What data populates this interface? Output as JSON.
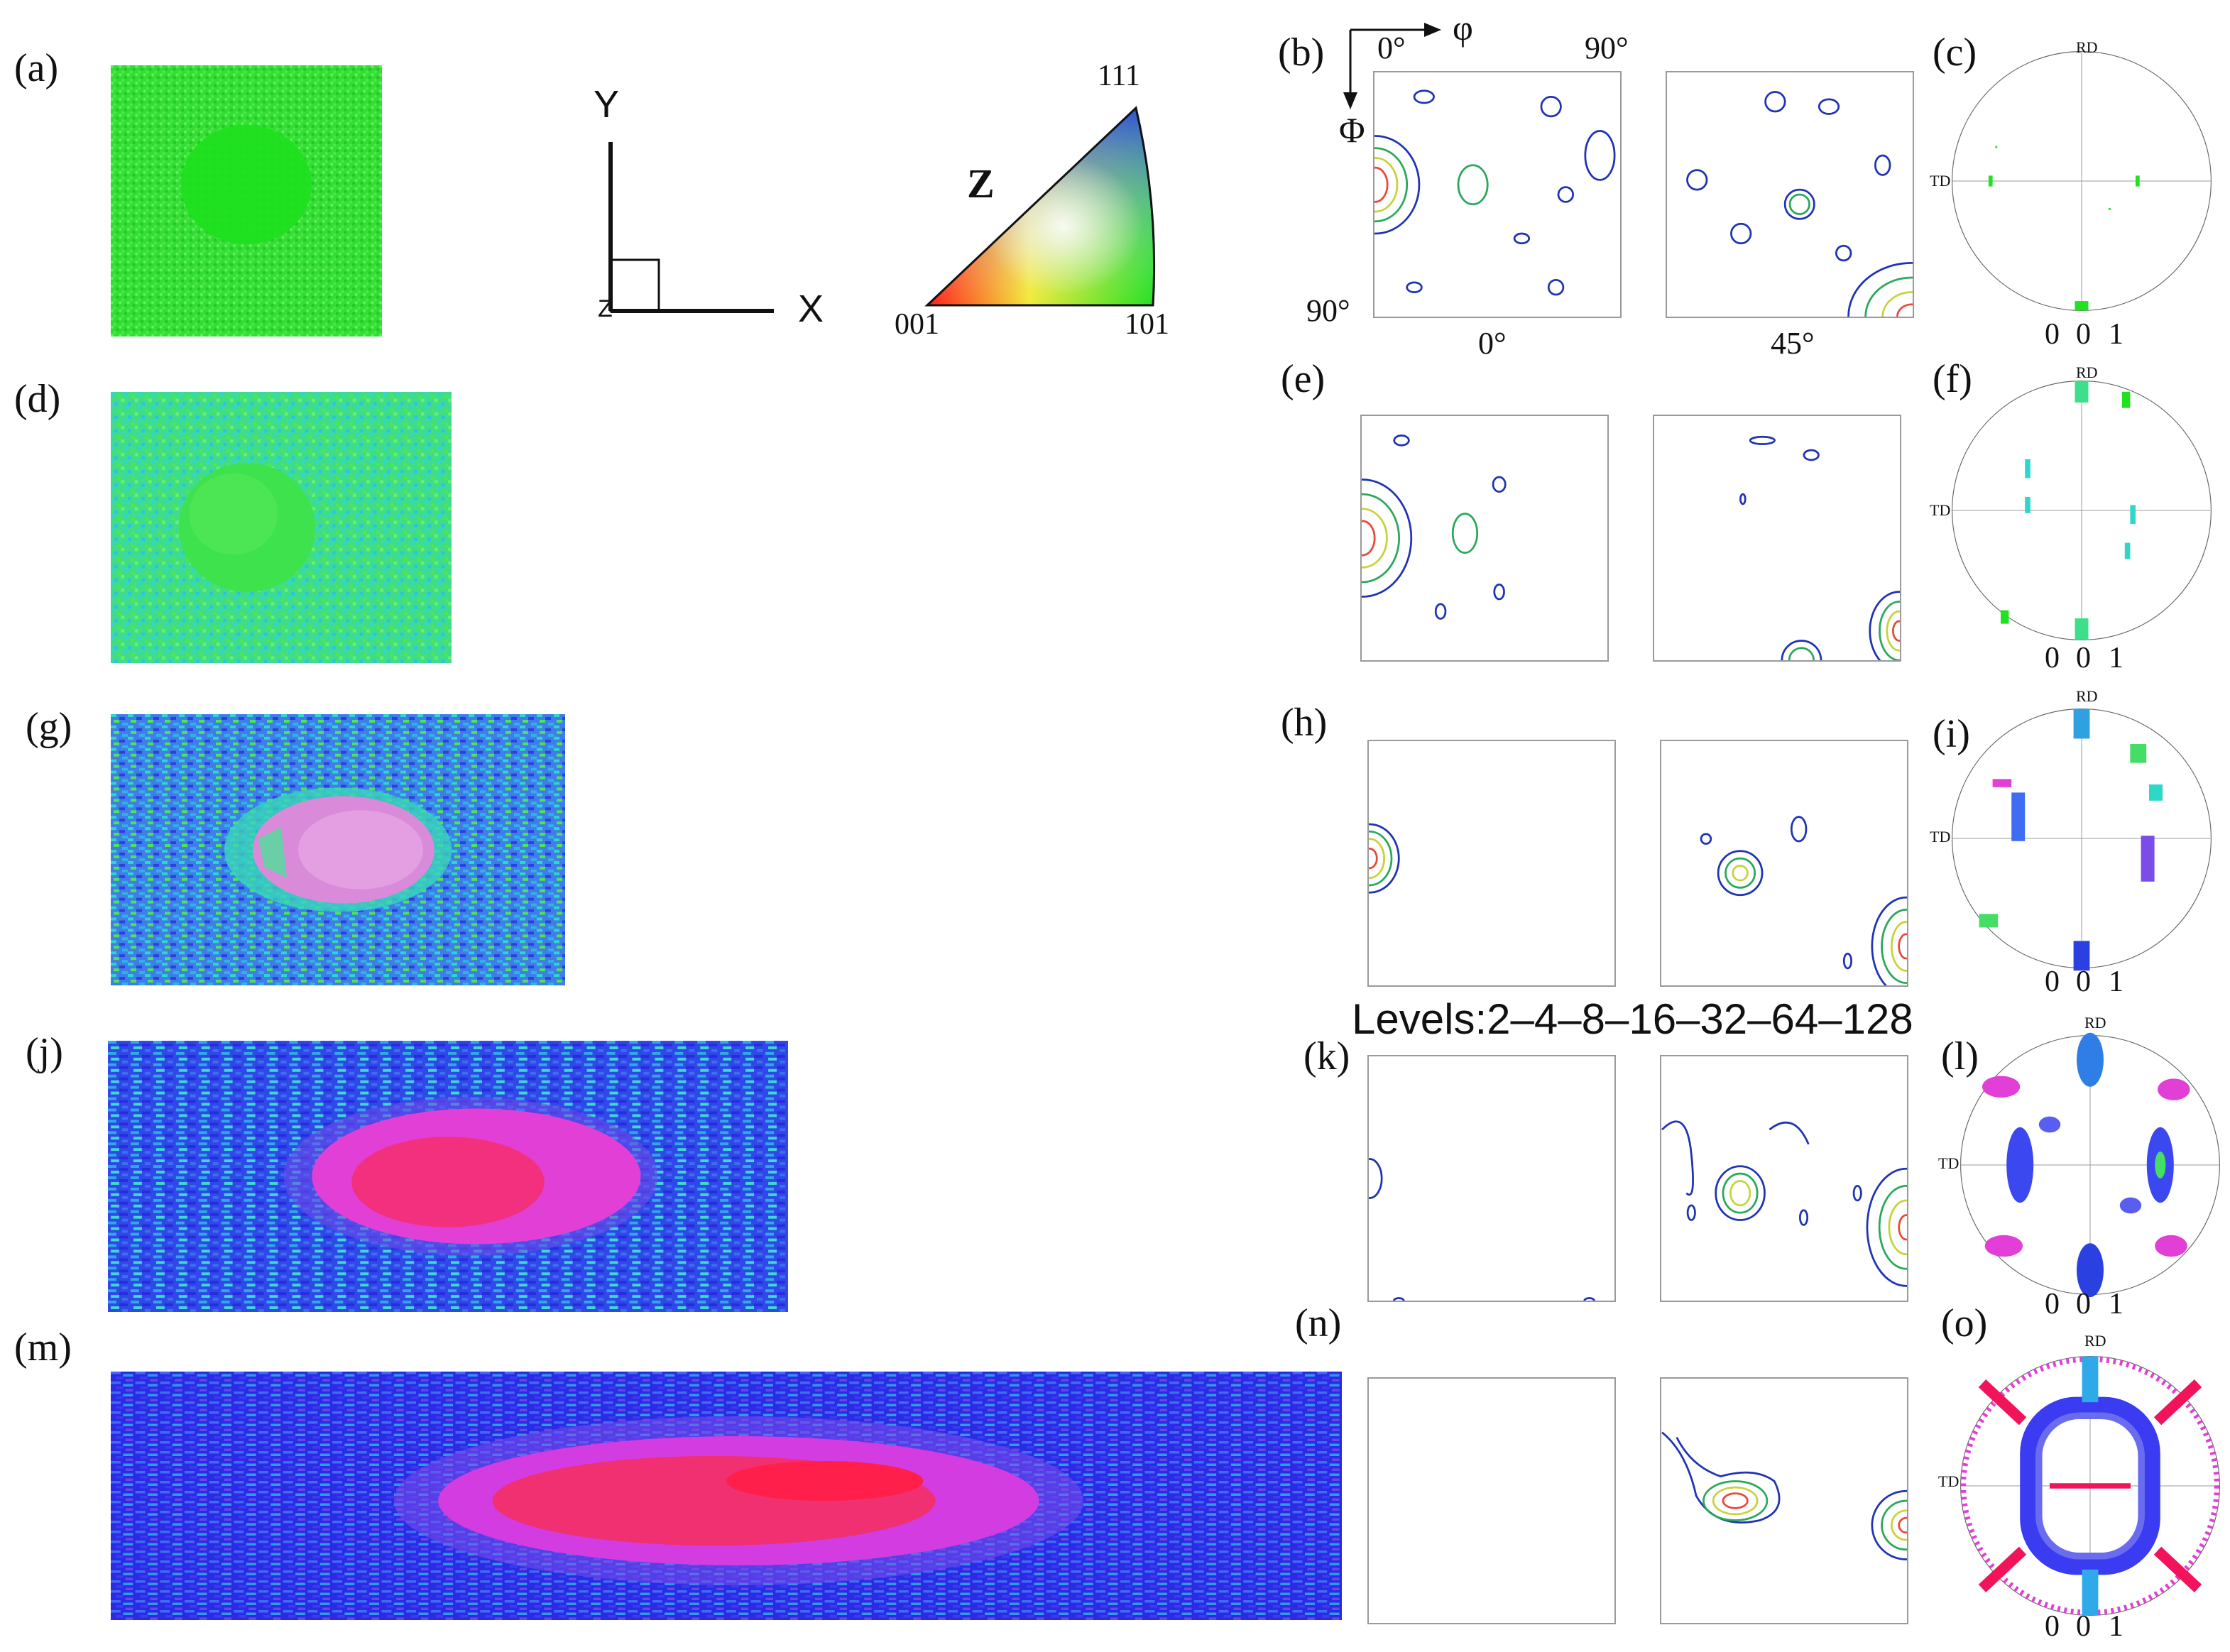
{
  "panels": {
    "a": "(a)",
    "b": "(b)",
    "c": "(c)",
    "d": "(d)",
    "e": "(e)",
    "f": "(f)",
    "g": "(g)",
    "h": "(h)",
    "i": "(i)",
    "j": "(j)",
    "k": "(k)",
    "l": "(l)",
    "m": "(m)",
    "n": "(n)",
    "o": "(o)"
  },
  "axes": {
    "y": "Y",
    "x": "X",
    "z": "Z"
  },
  "ipf_key": {
    "axis": "Z",
    "c111": "111",
    "c001": "001",
    "c101": "101"
  },
  "odf_axes": {
    "phi": "φ",
    "Phi": "Φ",
    "phi_start": "0°",
    "phi_end": "90°",
    "Phi_end": "90°",
    "section_1": "0°",
    "section_2": "45°"
  },
  "levels": "Levels:2–4–8–16–32–64–128",
  "pole_figure": {
    "rd": "RD",
    "td": "TD",
    "scale": [
      "0",
      "0",
      "1"
    ]
  },
  "colors": {
    "green": "#22e022",
    "cyan": "#2fd7c8",
    "blue": "#2a2ae6",
    "magenta": "#e43de6",
    "red": "#f2145a",
    "contour_low": "#1f33b3"
  }
}
